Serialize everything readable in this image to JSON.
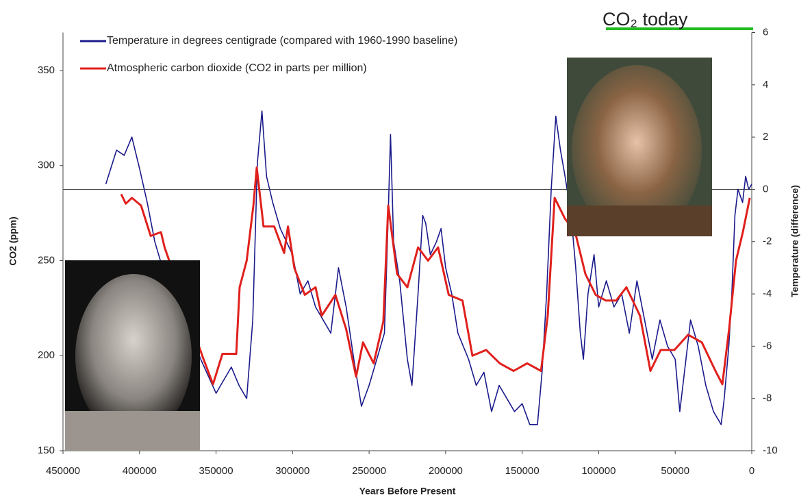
{
  "chart_data": {
    "type": "line",
    "xlabel": "Years Before Present",
    "ylabel": "CO2 (ppm)",
    "y2label": "Temperature (difference)",
    "annotation": "CO₂ today",
    "xlim": [
      450000,
      0
    ],
    "xticks": [
      450000,
      400000,
      350000,
      300000,
      250000,
      200000,
      150000,
      100000,
      50000,
      0
    ],
    "ylim": [
      150,
      370
    ],
    "yticks": [
      150,
      200,
      250,
      300,
      350
    ],
    "y2lim": [
      -10,
      6
    ],
    "y2ticks": [
      -10,
      -8,
      -6,
      -4,
      -2,
      0,
      2,
      4,
      6
    ],
    "y2_reference": 0,
    "legend": "upper-left",
    "series": [
      {
        "name": "Temperature in degrees centigrade (compared with 1960-1990 baseline)",
        "color": "#1a1a8c",
        "axis": "y2",
        "x": [
          422000,
          415000,
          410000,
          405000,
          400000,
          395000,
          390000,
          385000,
          380000,
          370000,
          360000,
          350000,
          345000,
          340000,
          335000,
          330000,
          326000,
          323000,
          320000,
          317000,
          313000,
          308000,
          300000,
          295000,
          290000,
          285000,
          280000,
          275000,
          270000,
          265000,
          260000,
          255000,
          250000,
          245000,
          240000,
          238000,
          236000,
          234000,
          230000,
          225000,
          222000,
          218000,
          215000,
          213000,
          210000,
          206000,
          203000,
          200000,
          196000,
          192000,
          185000,
          180000,
          175000,
          170000,
          165000,
          160000,
          155000,
          150000,
          145000,
          140000,
          137000,
          134000,
          131000,
          128000,
          125000,
          122000,
          118000,
          115000,
          112000,
          110000,
          107000,
          103000,
          100000,
          95000,
          90000,
          85000,
          80000,
          75000,
          70000,
          65000,
          60000,
          55000,
          50000,
          47000,
          43000,
          40000,
          35000,
          30000,
          25000,
          20000,
          18000,
          15000,
          13000,
          11000,
          9000,
          6000,
          4000,
          2000,
          0
        ],
        "values": [
          0.2,
          1.5,
          1.3,
          2.0,
          0.8,
          -0.5,
          -2.0,
          -3.0,
          -3.5,
          -5,
          -6.5,
          -7.8,
          -7.3,
          -6.8,
          -7.5,
          -8.0,
          -5,
          1.0,
          3.0,
          0.5,
          -0.5,
          -1.5,
          -2.5,
          -4,
          -3.5,
          -4.5,
          -5,
          -5.5,
          -3.0,
          -4.5,
          -6.5,
          -8.3,
          -7.5,
          -6.5,
          -5.5,
          -2,
          2.1,
          -2,
          -3.5,
          -6.5,
          -7.5,
          -4,
          -1,
          -1.3,
          -2.5,
          -2,
          -1.5,
          -3,
          -4,
          -5.5,
          -6.5,
          -7.5,
          -7,
          -8.5,
          -7.5,
          -8.0,
          -8.5,
          -8.2,
          -9.0,
          -9.0,
          -7,
          -4,
          0,
          2.8,
          1.5,
          0.5,
          -1,
          -3,
          -5.5,
          -6.5,
          -4,
          -2.5,
          -4.5,
          -3.5,
          -4.5,
          -4,
          -5.5,
          -3.5,
          -5,
          -6.5,
          -5,
          -6,
          -6.5,
          -8.5,
          -6.5,
          -5,
          -6,
          -7.5,
          -8.5,
          -9.0,
          -8,
          -6,
          -4,
          -1,
          0,
          -0.5,
          0.5,
          0,
          0.2
        ]
      },
      {
        "name": "Atmospheric carbon dioxide (CO2 in parts per million)",
        "color": "#e0201c",
        "axis": "y",
        "x": [
          412000,
          409000,
          405000,
          399000,
          392700,
          386000,
          383600,
          359000,
          352000,
          345800,
          336800,
          334600,
          330000,
          325600,
          323400,
          319000,
          312000,
          305500,
          303000,
          298800,
          292000,
          285000,
          281000,
          272000,
          265000,
          258500,
          254000,
          247000,
          240700,
          237500,
          231700,
          225000,
          218000,
          211500,
          204900,
          198000,
          189000,
          182500,
          173500,
          164600,
          155600,
          146700,
          137700,
          133300,
          128800,
          122000,
          115400,
          108700,
          102000,
          95300,
          88600,
          81900,
          73000,
          66200,
          59500,
          50500,
          41600,
          32600,
          23700,
          19200,
          14800,
          10300,
          5800,
          1300
        ],
        "values": [
          285,
          280,
          283,
          279,
          263,
          265,
          257,
          200,
          185,
          201,
          201,
          236,
          250,
          279,
          299,
          268,
          268,
          254,
          268,
          246,
          232,
          236,
          221,
          232,
          214,
          189,
          207,
          196,
          218,
          279,
          243,
          236,
          257,
          250,
          257,
          232,
          229,
          200,
          203,
          196,
          192,
          196,
          192,
          221,
          283,
          272,
          265,
          243,
          232,
          229,
          229,
          236,
          221,
          192,
          203,
          203,
          211,
          207,
          192,
          185,
          214,
          250,
          265,
          283
        ]
      }
    ]
  }
}
